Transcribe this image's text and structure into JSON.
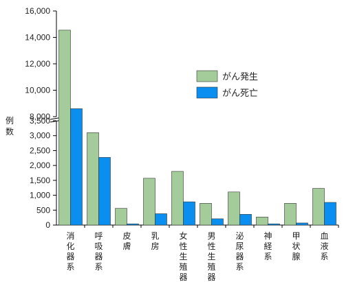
{
  "chart_data": {
    "type": "bar",
    "ylabel": "例数",
    "categories": [
      "消化器系",
      "呼吸器系",
      "皮膚",
      "乳房",
      "女性生殖器",
      "男性生殖器",
      "泌尿器系",
      "神経系",
      "甲状腺",
      "血液系"
    ],
    "series": [
      {
        "name": "がん発生",
        "color": "#a3cc9a",
        "values": [
          14550,
          3100,
          560,
          1570,
          1800,
          730,
          1110,
          270,
          730,
          1230
        ]
      },
      {
        "name": "がん死亡",
        "color": "#0a8ff0",
        "values": [
          8600,
          2270,
          40,
          380,
          780,
          210,
          360,
          40,
          70,
          760
        ]
      }
    ],
    "axis_break": {
      "lower_range": [
        0,
        3500
      ],
      "upper_range": [
        8000,
        16000
      ]
    },
    "y_ticks_lower": [
      "0",
      "500",
      "1,000",
      "1,500",
      "2,000",
      "2,500",
      "3,000",
      "3,500"
    ],
    "y_ticks_upper": [
      "8,000",
      "10,000",
      "12,000",
      "14,000",
      "16,000"
    ],
    "legend_position": "upper-right"
  }
}
